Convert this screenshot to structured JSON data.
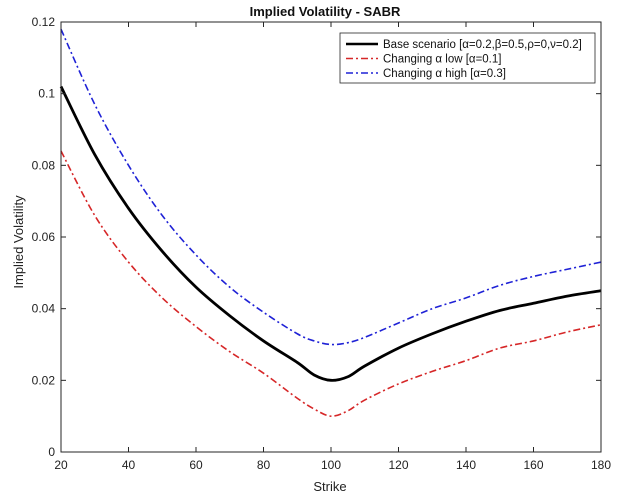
{
  "chart_data": {
    "type": "line",
    "title": "Implied Volatility - SABR",
    "xlabel": "Strike",
    "ylabel": "Implied Volatility",
    "xlim": [
      20,
      180
    ],
    "ylim": [
      0,
      0.12
    ],
    "xticks": [
      20,
      40,
      60,
      80,
      100,
      120,
      140,
      160,
      180
    ],
    "yticks": [
      0,
      0.02,
      0.04,
      0.06,
      0.08,
      0.1,
      0.12
    ],
    "xtick_labels": [
      "20",
      "40",
      "60",
      "80",
      "100",
      "120",
      "140",
      "160",
      "180"
    ],
    "ytick_labels": [
      "0",
      "0.02",
      "0.04",
      "0.06",
      "0.08",
      "0.1",
      "0.12"
    ],
    "grid": false,
    "legend_position": "top-right",
    "series": [
      {
        "name": "Base scenario [α=0.2,β=0.5,ρ=0,ν=0.2]",
        "color": "#000000",
        "style": "solid",
        "x": [
          20,
          30,
          40,
          50,
          60,
          70,
          80,
          90,
          95,
          100,
          105,
          110,
          120,
          130,
          140,
          150,
          160,
          170,
          180
        ],
        "y": [
          0.102,
          0.083,
          0.068,
          0.056,
          0.046,
          0.038,
          0.031,
          0.025,
          0.0215,
          0.02,
          0.021,
          0.024,
          0.029,
          0.033,
          0.0365,
          0.0395,
          0.0415,
          0.0435,
          0.045
        ]
      },
      {
        "name": "Changing α low [α=0.1]",
        "color": "#d62728",
        "style": "dashdot",
        "x": [
          20,
          30,
          40,
          50,
          60,
          70,
          80,
          90,
          95,
          100,
          105,
          110,
          120,
          130,
          140,
          150,
          160,
          170,
          180
        ],
        "y": [
          0.084,
          0.066,
          0.053,
          0.043,
          0.035,
          0.028,
          0.022,
          0.015,
          0.012,
          0.01,
          0.0115,
          0.0145,
          0.019,
          0.0225,
          0.0255,
          0.029,
          0.031,
          0.0335,
          0.0355
        ]
      },
      {
        "name": "Changing α high [α=0.3]",
        "color": "#1f22d6",
        "style": "dashdot",
        "x": [
          20,
          30,
          40,
          50,
          60,
          70,
          80,
          90,
          95,
          100,
          105,
          110,
          120,
          130,
          140,
          150,
          160,
          170,
          180
        ],
        "y": [
          0.118,
          0.097,
          0.08,
          0.066,
          0.055,
          0.046,
          0.039,
          0.033,
          0.031,
          0.03,
          0.0305,
          0.032,
          0.036,
          0.04,
          0.043,
          0.0465,
          0.049,
          0.051,
          0.053
        ]
      }
    ]
  }
}
